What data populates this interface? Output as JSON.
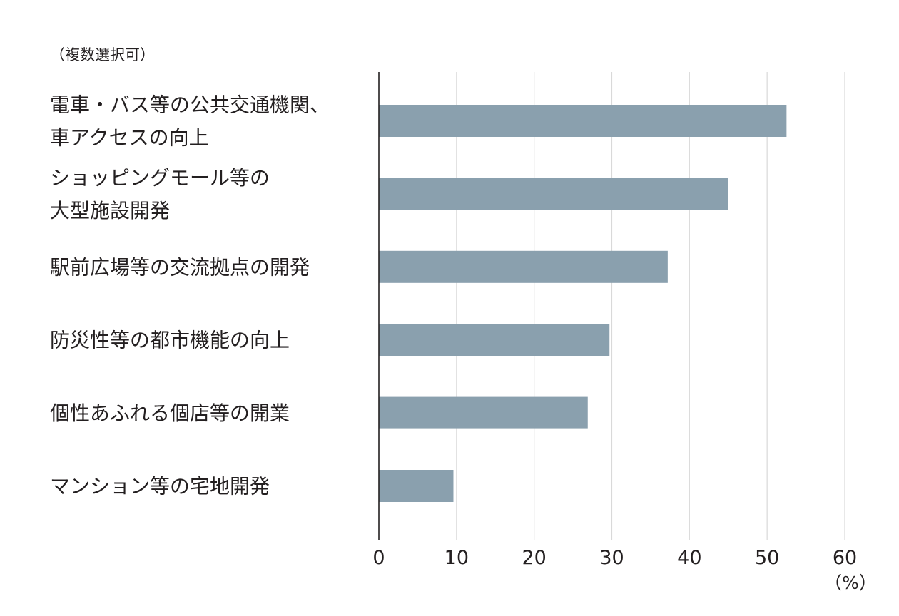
{
  "chart_data": {
    "type": "bar",
    "orientation": "horizontal",
    "note": "（複数選択可）",
    "categories": [
      [
        "電車・バス等の公共交通機関、",
        "車アクセスの向上"
      ],
      [
        "ショッピングモール等の",
        "大型施設開発"
      ],
      [
        "駅前広場等の交流拠点の開発"
      ],
      [
        "防災性等の都市機能の向上"
      ],
      [
        "個性あふれる個店等の開業"
      ],
      [
        "マンション等の宅地開発"
      ]
    ],
    "values": [
      52.5,
      45,
      37.2,
      29.7,
      26.9,
      9.6
    ],
    "xlim": [
      0,
      60
    ],
    "xticks": [
      "0",
      "10",
      "20",
      "30",
      "40",
      "50",
      "60"
    ],
    "xunit": "（%）",
    "grid": "vertical",
    "bar_color": "#8aa0ae"
  }
}
